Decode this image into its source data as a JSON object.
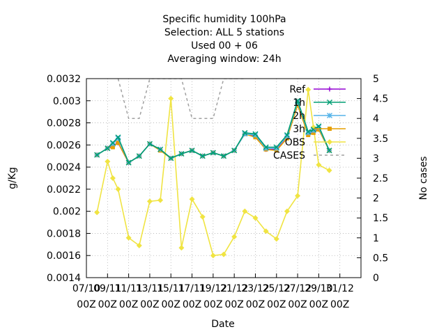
{
  "chart_data": {
    "type": "line",
    "title_lines": [
      "Specific humidity 100hPa",
      "Selection: ALL      5 stations",
      "Used  00 + 06",
      "Averaging window: 24h"
    ],
    "xlabel": "Date",
    "ylabel": "g/Kg",
    "y2label": "No cases",
    "ylim": [
      0.0014,
      0.0032
    ],
    "y2lim": [
      0,
      5
    ],
    "yticks": [
      "0.0014",
      "0.0016",
      "0.0018",
      "0.002",
      "0.0022",
      "0.0024",
      "0.0026",
      "0.0028",
      "0.003",
      "0.0032"
    ],
    "y2ticks": [
      "0",
      "0.5",
      "1",
      "1.5",
      "2",
      "2.5",
      "3",
      "3.5",
      "4",
      "4.5",
      "5"
    ],
    "xlim": [
      0,
      26
    ],
    "xticks": [
      {
        "x": 0,
        "line1": "07/10",
        "line2": "00Z"
      },
      {
        "x": 2,
        "line1": "09/11",
        "line2": "00Z"
      },
      {
        "x": 4,
        "line1": "11/11",
        "line2": "00Z"
      },
      {
        "x": 6,
        "line1": "13/11",
        "line2": "00Z"
      },
      {
        "x": 8,
        "line1": "15/11",
        "line2": "00Z"
      },
      {
        "x": 10,
        "line1": "17/11",
        "line2": "00Z"
      },
      {
        "x": 12,
        "line1": "19/12",
        "line2": "00Z"
      },
      {
        "x": 14,
        "line1": "21/12",
        "line2": "00Z"
      },
      {
        "x": 16,
        "line1": "23/12",
        "line2": "00Z"
      },
      {
        "x": 18,
        "line1": "25/12",
        "line2": "00Z"
      },
      {
        "x": 20,
        "line1": "27/12",
        "line2": "00Z"
      },
      {
        "x": 22,
        "line1": "29/10",
        "line2": "00Z"
      },
      {
        "x": 24,
        "line1": "31/12",
        "line2": "00Z"
      }
    ],
    "x": [
      1,
      2,
      2.5,
      3,
      4,
      5,
      6,
      7,
      8,
      9,
      10,
      11,
      12,
      13,
      14,
      15,
      16,
      17,
      18,
      19,
      20,
      21,
      21.5,
      22,
      23
    ],
    "series": [
      {
        "name": "Ref",
        "color": "#9400d3",
        "axis": "y",
        "marker": "plus",
        "values": [
          0.00251,
          0.00257,
          0.00259,
          0.00262,
          0.00244,
          0.0025,
          0.00261,
          0.00256,
          0.00248,
          0.00252,
          0.00255,
          0.0025,
          0.00253,
          0.0025,
          0.00255,
          0.0027,
          0.00268,
          0.00256,
          0.00256,
          0.00268,
          0.00297,
          0.0027,
          0.00272,
          0.00275,
          0.00255
        ]
      },
      {
        "name": "1h",
        "color": "#009e73",
        "axis": "y",
        "marker": "cross",
        "values": [
          0.00251,
          0.00257,
          0.00262,
          0.00267,
          0.00244,
          0.0025,
          0.00261,
          0.00256,
          0.00248,
          0.00252,
          0.00255,
          0.0025,
          0.00253,
          0.0025,
          0.00255,
          0.00271,
          0.0027,
          0.00258,
          0.00258,
          0.00269,
          0.003,
          0.00272,
          0.00274,
          0.00277,
          0.00255
        ]
      },
      {
        "name": "2h",
        "color": "#56b4e9",
        "axis": "y",
        "marker": "star",
        "values": [
          0.00251,
          0.00257,
          0.00261,
          0.00266,
          0.00244,
          0.0025,
          0.00261,
          0.00256,
          0.00248,
          0.00252,
          0.00255,
          0.0025,
          0.00253,
          0.0025,
          0.00255,
          0.0027,
          0.00269,
          0.00257,
          0.00257,
          0.00268,
          0.00299,
          0.00271,
          0.00273,
          0.00276,
          0.00255
        ]
      },
      {
        "name": "3h",
        "color": "#e69f00",
        "axis": "y",
        "marker": "square",
        "values": [
          0.00251,
          0.00257,
          0.00258,
          0.00262,
          0.00244,
          0.0025,
          0.00261,
          0.00255,
          0.00248,
          0.00252,
          0.00255,
          0.0025,
          0.00253,
          0.0025,
          0.00255,
          0.0027,
          0.00267,
          0.00256,
          0.00255,
          0.00266,
          0.00296,
          0.00269,
          0.00271,
          0.00274,
          0.00255
        ]
      },
      {
        "name": "OBS",
        "color": "#f0e442",
        "axis": "y",
        "marker": "diamond",
        "values": [
          0.00199,
          0.00245,
          0.0023,
          0.0022,
          0.00176,
          0.00169,
          0.00209,
          0.0021,
          0.00302,
          0.00167,
          0.00211,
          0.00195,
          0.0016,
          0.00161,
          0.00177,
          0.002,
          0.00194,
          0.00182,
          0.00175,
          0.002,
          0.00214,
          0.0031,
          0.00276,
          0.00242,
          0.00237
        ]
      }
    ],
    "cases": {
      "name": "CASES",
      "color": "#a0a0a0",
      "axis": "y2",
      "style": "dashed",
      "x": [
        3,
        4,
        5,
        6,
        7,
        8,
        9,
        10,
        11,
        12,
        13,
        14,
        15
      ],
      "values": [
        5,
        4,
        4,
        5,
        5,
        5,
        5,
        4,
        4,
        4,
        5,
        5,
        5
      ]
    },
    "grid": true,
    "legend": "top-right"
  }
}
